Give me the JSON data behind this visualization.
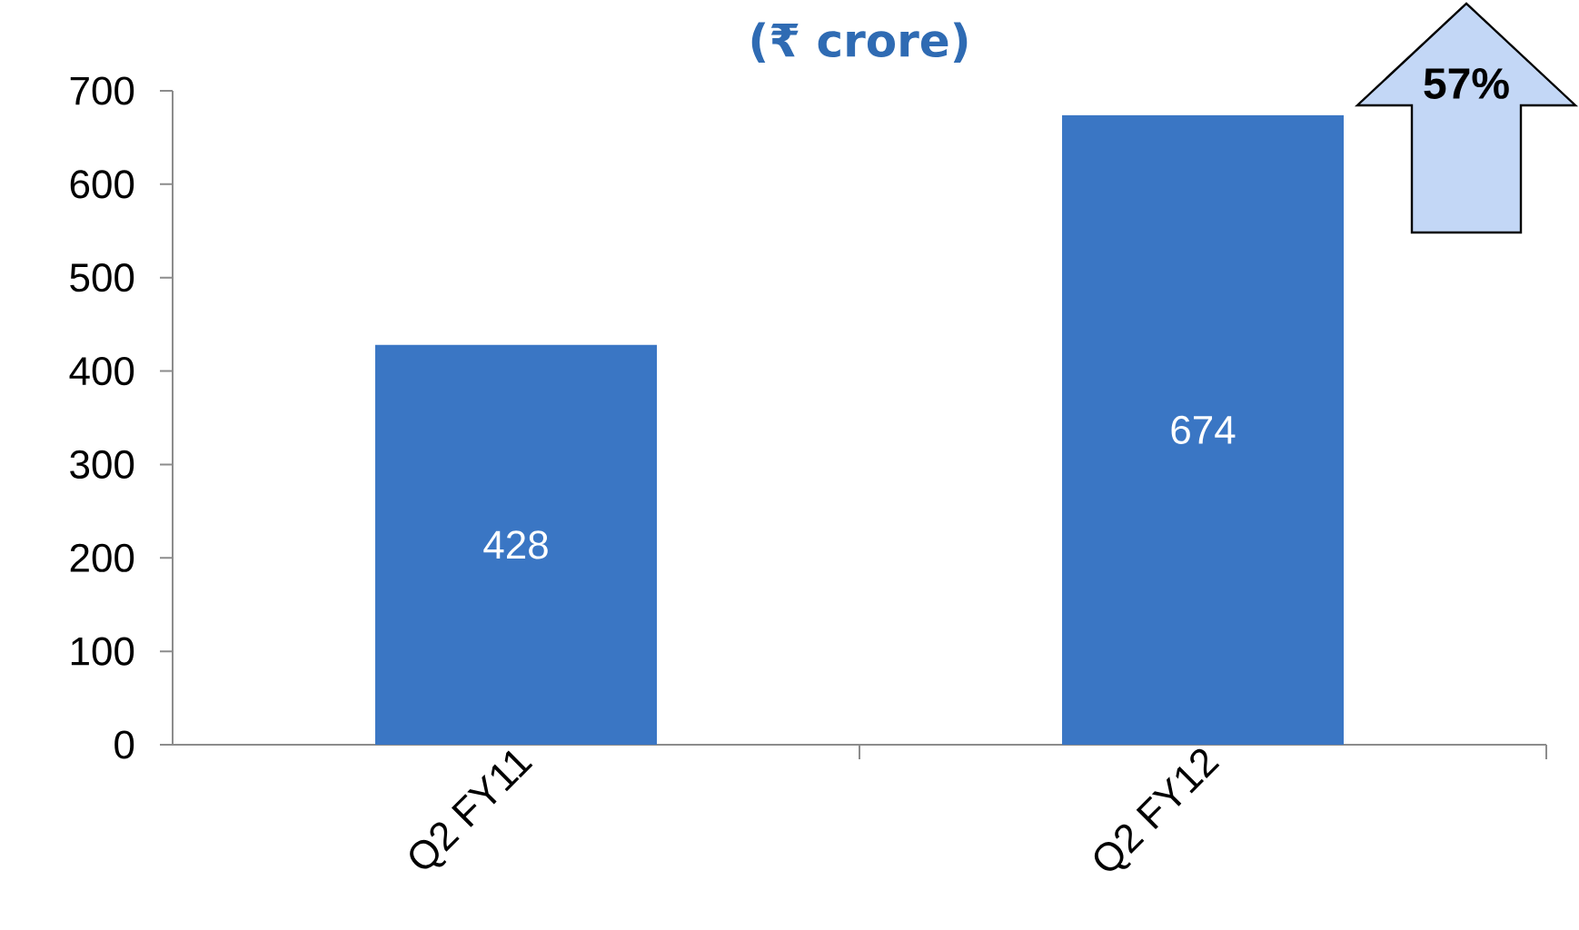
{
  "chart_data": {
    "type": "bar",
    "title": "(₹ crore)",
    "categories": [
      "Q2 FY11",
      "Q2 FY12"
    ],
    "values": [
      428,
      674
    ],
    "color": "#3a76c4",
    "ylim": [
      0,
      700
    ],
    "yticks": [
      0,
      100,
      200,
      300,
      400,
      500,
      600,
      700
    ],
    "data_labels": true,
    "annotations": [
      "57%"
    ]
  }
}
